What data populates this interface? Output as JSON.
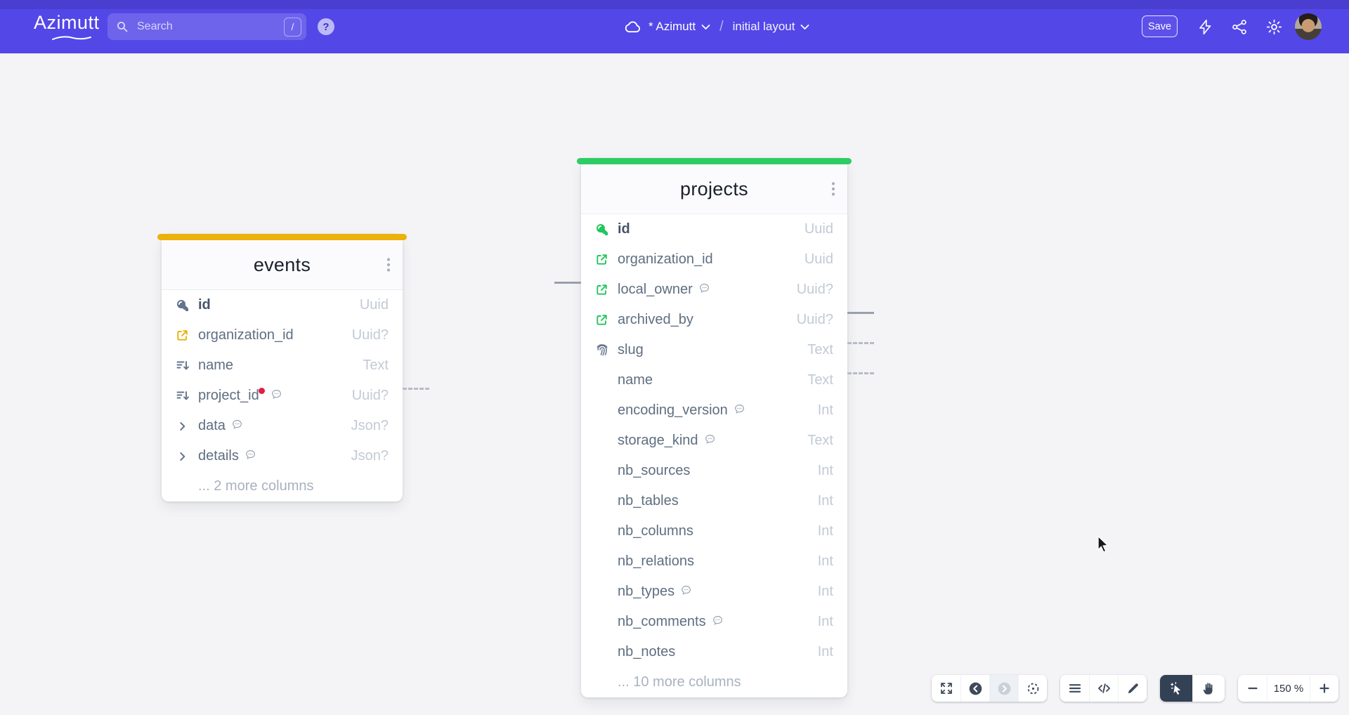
{
  "header": {
    "logo_text": "Azimutt",
    "search": {
      "placeholder": "Search",
      "shortcut_key": "/"
    },
    "help_label": "?",
    "project_switcher": {
      "project_name": "* Azimutt",
      "separator": "/",
      "layout_name": "initial layout"
    },
    "save_label": "Save"
  },
  "icons": {
    "search": "magnifier",
    "help": "question-circle",
    "project-storage": "cloud",
    "dropdown": "chevron-down",
    "quick-actions": "bolt",
    "share": "share-nodes",
    "settings": "gear",
    "primary-key": "key",
    "foreign-key": "external-link",
    "index": "sort-desc",
    "unique": "fingerprint",
    "nested": "chevron-right",
    "comment": "speech-bubble",
    "table-menu": "kebab-dots"
  },
  "diagram": {
    "tables": [
      {
        "id": "events",
        "title": "events",
        "accent_color": "#ecb10b",
        "more_columns_label": "... 2 more columns",
        "columns": [
          {
            "name": "id",
            "type": "Uuid",
            "icon": "key",
            "icon_color": "#64748b",
            "primary": true
          },
          {
            "name": "organization_id",
            "type": "Uuid?",
            "icon": "external-link",
            "icon_color": "#e7b008"
          },
          {
            "name": "name",
            "type": "Text",
            "icon": "index",
            "icon_color": "#64748b"
          },
          {
            "name": "project_id",
            "type": "Uuid?",
            "icon": "index",
            "icon_color": "#64748b",
            "has_red_dot": true,
            "has_comment": true
          },
          {
            "name": "data",
            "type": "Json?",
            "icon": "chevron-right",
            "icon_color": "#64748b",
            "has_comment": true
          },
          {
            "name": "details",
            "type": "Json?",
            "icon": "chevron-right",
            "icon_color": "#64748b",
            "has_comment": true
          }
        ]
      },
      {
        "id": "projects",
        "title": "projects",
        "accent_color": "#2ecc64",
        "more_columns_label": "... 10 more columns",
        "columns": [
          {
            "name": "id",
            "type": "Uuid",
            "icon": "key",
            "icon_color": "#22c55e",
            "primary": true
          },
          {
            "name": "organization_id",
            "type": "Uuid",
            "icon": "external-link",
            "icon_color": "#22c55e"
          },
          {
            "name": "local_owner",
            "type": "Uuid?",
            "icon": "external-link",
            "icon_color": "#22c55e",
            "has_comment": true
          },
          {
            "name": "archived_by",
            "type": "Uuid?",
            "icon": "external-link",
            "icon_color": "#22c55e"
          },
          {
            "name": "slug",
            "type": "Text",
            "icon": "fingerprint",
            "icon_color": "#64748b"
          },
          {
            "name": "name",
            "type": "Text"
          },
          {
            "name": "encoding_version",
            "type": "Int",
            "has_comment": true
          },
          {
            "name": "storage_kind",
            "type": "Text",
            "has_comment": true
          },
          {
            "name": "nb_sources",
            "type": "Int"
          },
          {
            "name": "nb_tables",
            "type": "Int"
          },
          {
            "name": "nb_columns",
            "type": "Int"
          },
          {
            "name": "nb_relations",
            "type": "Int"
          },
          {
            "name": "nb_types",
            "type": "Int",
            "has_comment": true
          },
          {
            "name": "nb_comments",
            "type": "Int",
            "has_comment": true
          },
          {
            "name": "nb_notes",
            "type": "Int"
          }
        ]
      }
    ],
    "relations": [
      {
        "table": "events",
        "column": "organization_id",
        "side": "right",
        "style": "dashed"
      },
      {
        "table": "projects",
        "column": "id",
        "side": "left",
        "style": "solid"
      },
      {
        "table": "projects",
        "column": "organization_id",
        "side": "right",
        "style": "solid"
      },
      {
        "table": "projects",
        "column": "local_owner",
        "side": "right",
        "style": "dashed"
      },
      {
        "table": "projects",
        "column": "archived_by",
        "side": "right",
        "style": "dashed"
      }
    ]
  },
  "toolbar": {
    "zoom_level": "150 %",
    "groups": [
      {
        "buttons": [
          {
            "name": "fullscreen-button",
            "icon": "expand"
          },
          {
            "name": "undo-button",
            "icon": "arrow-left-circle"
          },
          {
            "name": "redo-button",
            "icon": "arrow-right-circle",
            "state": "disabled"
          },
          {
            "name": "fit-view-button",
            "icon": "fit-view"
          }
        ]
      },
      {
        "buttons": [
          {
            "name": "tables-list-button",
            "icon": "menu"
          },
          {
            "name": "source-code-button",
            "icon": "code"
          },
          {
            "name": "edit-button",
            "icon": "pencil"
          }
        ]
      },
      {
        "buttons": [
          {
            "name": "select-tool-button",
            "icon": "cursor-select",
            "state": "active"
          },
          {
            "name": "pan-tool-button",
            "icon": "hand"
          }
        ]
      },
      {
        "buttons": [
          {
            "name": "zoom-out-button",
            "icon": "minus"
          },
          {
            "name": "zoom-label"
          },
          {
            "name": "zoom-in-button",
            "icon": "plus"
          }
        ]
      }
    ]
  }
}
